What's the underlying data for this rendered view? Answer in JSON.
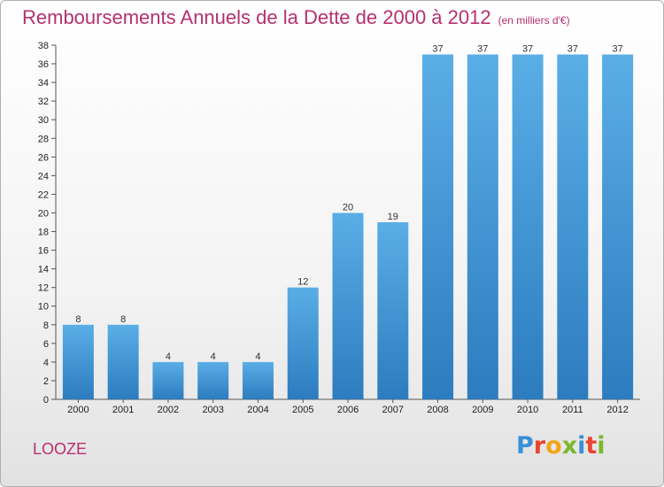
{
  "title": "Remboursements Annuels de la Dette de 2000 à 2012",
  "subtitle": "(en milliers d'€)",
  "commune": "LOOZE",
  "logo": {
    "letters": [
      "P",
      "r",
      "o",
      "x",
      "i",
      "t",
      "i"
    ],
    "colors": [
      "#3a8fd8",
      "#e8452f",
      "#f2a51a",
      "#7cb82f",
      "#3a8fd8",
      "#e8452f",
      "#7cb82f"
    ]
  },
  "colors": {
    "bar_top": "#5aaee6",
    "bar_bottom": "#2c7cbf",
    "title": "#b5306f"
  },
  "chart_data": {
    "type": "bar",
    "categories": [
      "2000",
      "2001",
      "2002",
      "2003",
      "2004",
      "2005",
      "2006",
      "2007",
      "2008",
      "2009",
      "2010",
      "2011",
      "2012"
    ],
    "values": [
      8,
      8,
      4,
      4,
      4,
      12,
      20,
      19,
      37,
      37,
      37,
      37,
      37
    ],
    "ylim": [
      0,
      38
    ],
    "yticks": [
      0,
      2,
      4,
      6,
      8,
      10,
      12,
      14,
      16,
      18,
      20,
      22,
      24,
      26,
      28,
      30,
      32,
      34,
      36,
      38
    ],
    "grid": false,
    "data_labels": true
  }
}
